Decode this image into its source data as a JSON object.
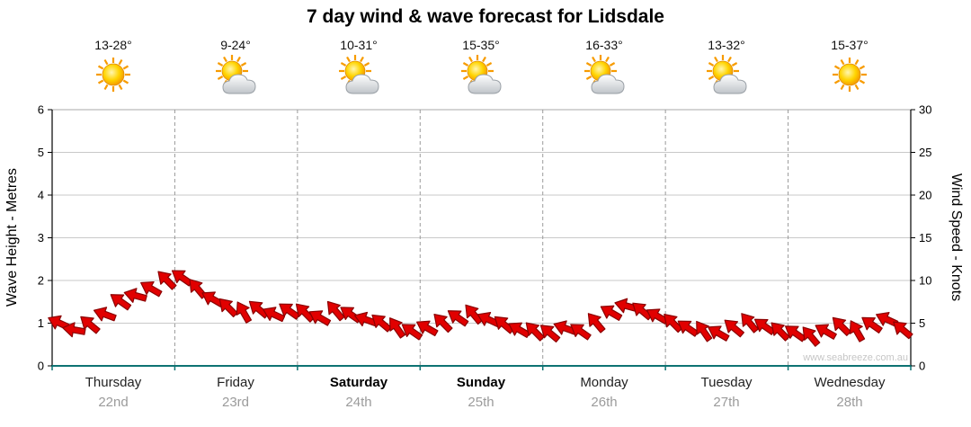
{
  "title": "7 day wind & wave forecast for Lidsdale",
  "watermark": "www.seabreeze.com.au",
  "forecast": {
    "days": [
      {
        "name": "Thursday",
        "date": "22nd",
        "temp": "13-28°",
        "icon": "sun",
        "bold": false
      },
      {
        "name": "Friday",
        "date": "23rd",
        "temp": "9-24°",
        "icon": "sun-cloud",
        "bold": false
      },
      {
        "name": "Saturday",
        "date": "24th",
        "temp": "10-31°",
        "icon": "sun-cloud",
        "bold": true
      },
      {
        "name": "Sunday",
        "date": "25th",
        "temp": "15-35°",
        "icon": "sun-cloud",
        "bold": true
      },
      {
        "name": "Monday",
        "date": "26th",
        "temp": "16-33°",
        "icon": "sun-cloud",
        "bold": false
      },
      {
        "name": "Tuesday",
        "date": "27th",
        "temp": "13-32°",
        "icon": "sun-cloud",
        "bold": false
      },
      {
        "name": "Wednesday",
        "date": "28th",
        "temp": "15-37°",
        "icon": "sun",
        "bold": false
      }
    ]
  },
  "axes": {
    "left_label": "Wave Height - Metres",
    "right_label": "Wind Speed - Knots",
    "left_ticks": [
      0,
      1,
      2,
      3,
      4,
      5,
      6
    ],
    "right_ticks": [
      0,
      5,
      10,
      15,
      20,
      25,
      30
    ]
  },
  "colors": {
    "arrow": "#e10000",
    "arrow_outline": "#8b0000",
    "axis_bottom": "#0e7373",
    "grid": "#c9c9c9",
    "day_divider": "#9a9a9a",
    "axis_line": "#000000"
  },
  "chart_data": {
    "type": "scatter",
    "title": "7 day wind & wave forecast for Lidsdale",
    "ylabel_left": "Wave Height - Metres",
    "ylabel_right": "Wind Speed - Knots",
    "ylim_left": [
      0,
      6
    ],
    "ylim_right": [
      0,
      30
    ],
    "grid": true,
    "marker": "wind-arrow",
    "series_name": "Wind speed (knots), 8 samples per day",
    "categories": [
      "Thursday 22nd",
      "Friday 23rd",
      "Saturday 24th",
      "Sunday 25th",
      "Monday 26th",
      "Tuesday 27th",
      "Wednesday 28th"
    ],
    "wind_speed_knots": [
      5.0,
      4.2,
      4.8,
      6.0,
      7.5,
      8.2,
      9.0,
      10.0,
      10.3,
      9.0,
      7.8,
      6.8,
      6.2,
      6.6,
      6.0,
      6.4,
      6.2,
      5.6,
      6.4,
      6.0,
      5.4,
      5.0,
      4.4,
      4.0,
      4.4,
      5.0,
      5.6,
      6.0,
      5.4,
      4.8,
      4.2,
      4.0,
      3.8,
      4.4,
      4.0,
      5.0,
      6.2,
      7.0,
      6.4,
      5.8,
      5.0,
      4.4,
      4.0,
      3.8,
      4.4,
      5.0,
      4.6,
      4.0,
      3.8,
      3.4,
      4.0,
      4.6,
      4.0,
      4.8,
      5.4,
      4.2
    ],
    "wind_dir_deg": [
      205,
      190,
      220,
      200,
      215,
      195,
      210,
      225,
      215,
      230,
      210,
      225,
      240,
      220,
      205,
      215,
      225,
      210,
      230,
      215,
      200,
      220,
      235,
      215,
      210,
      225,
      215,
      230,
      205,
      220,
      210,
      225,
      220,
      200,
      215,
      230,
      210,
      195,
      220,
      210,
      225,
      215,
      235,
      210,
      220,
      230,
      215,
      225,
      215,
      230,
      210,
      225,
      240,
      215,
      205,
      220
    ]
  }
}
